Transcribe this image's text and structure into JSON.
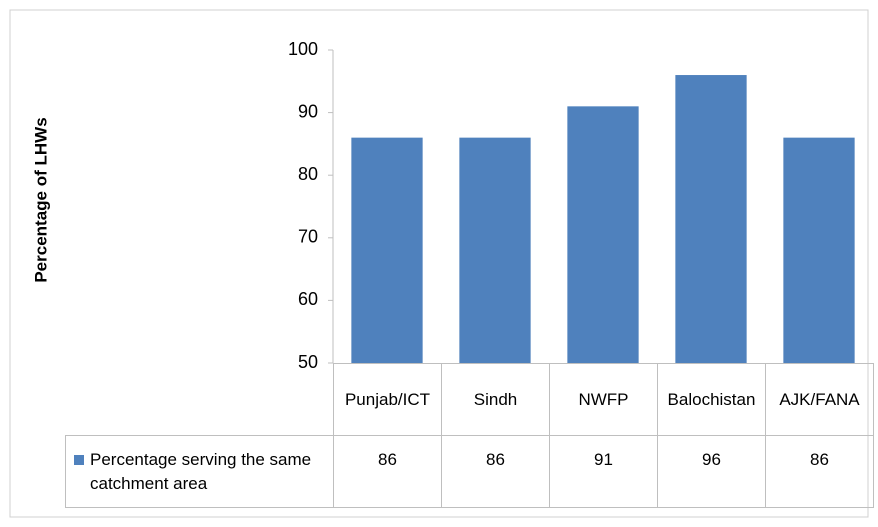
{
  "chart_data": {
    "type": "bar",
    "y_label": "Percentage of LHWs",
    "categories": [
      "Punjab/ICT",
      "Sindh",
      "NWFP",
      "Balochistan",
      "AJK/FANA"
    ],
    "series": [
      {
        "name": "Percentage serving the same catchment area",
        "color": "#4f81bd",
        "values": [
          86,
          86,
          91,
          96,
          86
        ]
      }
    ],
    "ylim": [
      50,
      100
    ],
    "yticks": [
      50,
      60,
      70,
      80,
      90,
      100
    ],
    "grid": false
  }
}
